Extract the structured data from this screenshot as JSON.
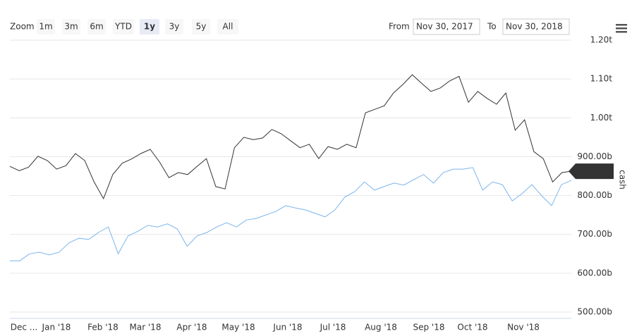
{
  "chart_data": {
    "type": "line",
    "range_selector": {
      "label": "Zoom",
      "buttons": [
        "1m",
        "3m",
        "6m",
        "YTD",
        "1y",
        "3y",
        "5y",
        "All"
      ],
      "selected": 4
    },
    "from_label": "From",
    "from_value": "Nov 30, 2017",
    "to_label": "To",
    "to_value": "Nov 30, 2018",
    "y_axis_title": "cash",
    "xtick_labels": [
      "Dec ...",
      "Jan '18",
      "Feb '18",
      "Mar '18",
      "Apr '18",
      "May '18",
      "Jun '18",
      "Jul '18",
      "Aug '18",
      "Sep '18",
      "Oct '18",
      "Nov '18"
    ],
    "ylim": [
      500,
      1200
    ],
    "yticks": [
      {
        "value": 500,
        "label": "500.00b"
      },
      {
        "value": 600,
        "label": "600.00b"
      },
      {
        "value": 700,
        "label": "700.00b"
      },
      {
        "value": 800,
        "label": "800.00b"
      },
      {
        "value": 900,
        "label": "900.00b"
      },
      {
        "value": 1000,
        "label": "1.00t"
      },
      {
        "value": 1100,
        "label": "1.10t"
      },
      {
        "value": 1200,
        "label": "1.20t"
      }
    ],
    "grid": true,
    "series": [
      {
        "color": "#333333",
        "values": [
          875,
          864,
          873,
          901,
          890,
          868,
          877,
          908,
          890,
          835,
          792,
          854,
          883,
          894,
          908,
          919,
          886,
          846,
          859,
          854,
          875,
          895,
          823,
          817,
          923,
          950,
          944,
          948,
          970,
          959,
          941,
          923,
          932,
          895,
          926,
          919,
          932,
          923,
          1013,
          1022,
          1031,
          1064,
          1086,
          1111,
          1089,
          1068,
          1077,
          1095,
          1107,
          1040,
          1068,
          1050,
          1035,
          1064,
          968,
          995,
          913,
          895,
          835,
          859,
          862.53
        ],
        "last_label": {
          "value": 862.53,
          "label": "862.53b"
        }
      },
      {
        "color": "#7cb5ec",
        "values": [
          632,
          632,
          650,
          654,
          647,
          654,
          678,
          690,
          687,
          705,
          719,
          650,
          696,
          708,
          723,
          719,
          727,
          714,
          669,
          696,
          705,
          719,
          730,
          719,
          737,
          741,
          750,
          759,
          774,
          768,
          763,
          754,
          745,
          763,
          796,
          810,
          835,
          814,
          823,
          832,
          827,
          841,
          854,
          832,
          859,
          868,
          868,
          872,
          814,
          835,
          828,
          786,
          805,
          828,
          799,
          774,
          828,
          839
        ]
      }
    ]
  }
}
